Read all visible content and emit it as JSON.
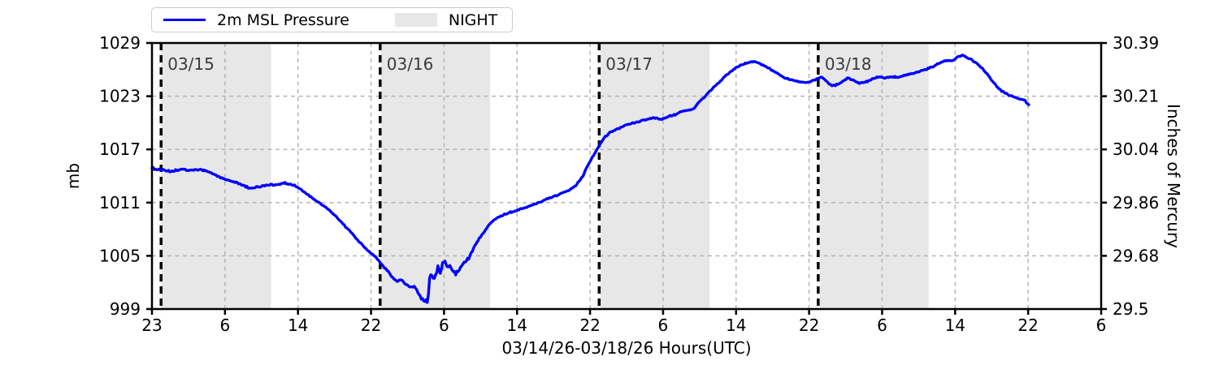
{
  "legend": {
    "series_label": "2m MSL Pressure",
    "night_label": "NIGHT"
  },
  "chart_data": {
    "type": "line",
    "title": "",
    "xlabel": "03/14/26-03/18/26  Hours(UTC)",
    "x_domain": [
      0,
      104
    ],
    "x_ticks": {
      "positions": [
        0,
        8,
        16,
        24,
        32,
        40,
        48,
        56,
        64,
        72,
        80,
        88,
        96,
        104
      ],
      "labels": [
        "23",
        "6",
        "14",
        "22",
        "6",
        "14",
        "22",
        "6",
        "14",
        "22",
        "6",
        "14",
        "22",
        "6"
      ]
    },
    "left_axis": {
      "label": "mb",
      "range": [
        999,
        1029
      ],
      "ticks": [
        1029,
        1023,
        1017,
        1011,
        1005,
        999
      ]
    },
    "right_axis": {
      "label": "Inches of Mercury",
      "range": [
        29.5,
        30.39
      ],
      "ticks": [
        "30.39",
        "30.21",
        "30.04",
        "29.86",
        "29.68",
        "29.5"
      ]
    },
    "grid": {
      "h_lines": [
        1005,
        1011,
        1017,
        1023
      ],
      "v_lines": [
        8,
        16,
        24,
        32,
        40,
        48,
        56,
        64,
        72,
        80,
        88,
        96
      ]
    },
    "day_lines": [
      {
        "pos": 1,
        "label": "03/15"
      },
      {
        "pos": 25,
        "label": "03/16"
      },
      {
        "pos": 49,
        "label": "03/17"
      },
      {
        "pos": 73,
        "label": "03/18"
      }
    ],
    "night_bands": [
      [
        1,
        13.05
      ],
      [
        25.1,
        37.05
      ],
      [
        49.15,
        61.1
      ],
      [
        73.2,
        85.1
      ]
    ],
    "colors": {
      "line": "#0000ff",
      "night": "#e7e7e7",
      "grid": "#b0b0b0",
      "day_line": "#000000",
      "day_label": "#3a3a3a",
      "axis": "#000000"
    },
    "series": [
      {
        "name": "2m MSL Pressure",
        "color": "#0000ff",
        "points": [
          [
            0,
            1014.9
          ],
          [
            0.5,
            1014.75
          ],
          [
            1,
            1014.7
          ],
          [
            1.7,
            1014.55
          ],
          [
            2.2,
            1014.5
          ],
          [
            2.9,
            1014.7
          ],
          [
            3.4,
            1014.8
          ],
          [
            4,
            1014.6
          ],
          [
            4.6,
            1014.65
          ],
          [
            5.2,
            1014.75
          ],
          [
            5.8,
            1014.6
          ],
          [
            6.4,
            1014.35
          ],
          [
            7,
            1014.1
          ],
          [
            7.6,
            1013.8
          ],
          [
            8.2,
            1013.55
          ],
          [
            9,
            1013.35
          ],
          [
            9.7,
            1013.1
          ],
          [
            10.4,
            1012.75
          ],
          [
            11,
            1012.6
          ],
          [
            11.5,
            1012.75
          ],
          [
            12.2,
            1012.9
          ],
          [
            13,
            1013.0
          ],
          [
            13.8,
            1013.05
          ],
          [
            14.5,
            1013.2
          ],
          [
            15.1,
            1013.05
          ],
          [
            15.7,
            1012.85
          ],
          [
            16.3,
            1012.5
          ],
          [
            17,
            1011.95
          ],
          [
            17.7,
            1011.4
          ],
          [
            18.3,
            1011.0
          ],
          [
            19,
            1010.5
          ],
          [
            19.7,
            1009.9
          ],
          [
            20.4,
            1009.2
          ],
          [
            21.1,
            1008.4
          ],
          [
            21.8,
            1007.65
          ],
          [
            22.5,
            1006.85
          ],
          [
            23.2,
            1006.05
          ],
          [
            24,
            1005.3
          ],
          [
            24.6,
            1004.75
          ],
          [
            25.2,
            1004.0
          ],
          [
            25.8,
            1003.3
          ],
          [
            26.4,
            1002.5
          ],
          [
            26.9,
            1002.1
          ],
          [
            27.3,
            1002.3
          ],
          [
            27.8,
            1001.8
          ],
          [
            28.3,
            1001.45
          ],
          [
            28.8,
            1001.55
          ],
          [
            29.3,
            1000.6
          ],
          [
            29.8,
            1000.0
          ],
          [
            30.1,
            999.75
          ],
          [
            30.25,
            999.9
          ],
          [
            30.35,
            1002.3
          ],
          [
            30.6,
            1002.9
          ],
          [
            30.8,
            1002.4
          ],
          [
            31.1,
            1002.8
          ],
          [
            31.35,
            1003.8
          ],
          [
            31.6,
            1003.1
          ],
          [
            31.9,
            1004.3
          ],
          [
            32.1,
            1004.45
          ],
          [
            32.35,
            1003.6
          ],
          [
            32.6,
            1004.05
          ],
          [
            32.9,
            1003.4
          ],
          [
            33.2,
            1003.0
          ],
          [
            33.6,
            1003.25
          ],
          [
            34,
            1004.0
          ],
          [
            34.4,
            1004.3
          ],
          [
            34.8,
            1004.85
          ],
          [
            35.3,
            1006.0
          ],
          [
            35.8,
            1006.9
          ],
          [
            36.3,
            1007.6
          ],
          [
            36.9,
            1008.5
          ],
          [
            37.4,
            1009.0
          ],
          [
            38,
            1009.4
          ],
          [
            38.7,
            1009.7
          ],
          [
            39.4,
            1009.95
          ],
          [
            40.2,
            1010.2
          ],
          [
            41,
            1010.5
          ],
          [
            41.8,
            1010.8
          ],
          [
            42.6,
            1011.1
          ],
          [
            43.4,
            1011.45
          ],
          [
            44.2,
            1011.75
          ],
          [
            45,
            1012.1
          ],
          [
            45.8,
            1012.5
          ],
          [
            46.5,
            1013.0
          ],
          [
            47.2,
            1014.0
          ],
          [
            47.8,
            1015.3
          ],
          [
            48.4,
            1016.4
          ],
          [
            49,
            1017.4
          ],
          [
            49.6,
            1018.4
          ],
          [
            50.3,
            1019.0
          ],
          [
            51.2,
            1019.4
          ],
          [
            52.1,
            1019.8
          ],
          [
            53,
            1020.05
          ],
          [
            54,
            1020.3
          ],
          [
            55,
            1020.55
          ],
          [
            55.8,
            1020.4
          ],
          [
            56.6,
            1020.7
          ],
          [
            57.4,
            1020.95
          ],
          [
            58.2,
            1021.3
          ],
          [
            58.9,
            1021.45
          ],
          [
            59.4,
            1021.6
          ],
          [
            59.9,
            1022.3
          ],
          [
            60.9,
            1023.3
          ],
          [
            61.7,
            1024.15
          ],
          [
            62.6,
            1025.05
          ],
          [
            63.5,
            1025.85
          ],
          [
            64.4,
            1026.45
          ],
          [
            65.1,
            1026.75
          ],
          [
            65.7,
            1026.9
          ],
          [
            66.3,
            1026.8
          ],
          [
            67,
            1026.5
          ],
          [
            67.8,
            1026.0
          ],
          [
            68.6,
            1025.5
          ],
          [
            69.4,
            1025.05
          ],
          [
            70.2,
            1024.8
          ],
          [
            71,
            1024.65
          ],
          [
            71.7,
            1024.55
          ],
          [
            72.4,
            1024.75
          ],
          [
            73,
            1025.0
          ],
          [
            73.3,
            1025.15
          ],
          [
            73.8,
            1024.8
          ],
          [
            74.4,
            1024.2
          ],
          [
            74.9,
            1024.25
          ],
          [
            75.6,
            1024.6
          ],
          [
            76.2,
            1025.05
          ],
          [
            76.8,
            1024.8
          ],
          [
            77.5,
            1024.45
          ],
          [
            78.2,
            1024.6
          ],
          [
            79,
            1024.95
          ],
          [
            79.7,
            1025.2
          ],
          [
            80.4,
            1025.05
          ],
          [
            81.1,
            1025.2
          ],
          [
            81.8,
            1025.1
          ],
          [
            82.5,
            1025.35
          ],
          [
            83.3,
            1025.5
          ],
          [
            84.1,
            1025.8
          ],
          [
            84.9,
            1026.05
          ],
          [
            85.7,
            1026.4
          ],
          [
            86.5,
            1026.85
          ],
          [
            87.1,
            1027.05
          ],
          [
            87.6,
            1026.95
          ],
          [
            88.2,
            1027.4
          ],
          [
            88.8,
            1027.6
          ],
          [
            89.4,
            1027.35
          ],
          [
            90.1,
            1026.9
          ],
          [
            90.8,
            1026.3
          ],
          [
            91.5,
            1025.55
          ],
          [
            92.1,
            1024.7
          ],
          [
            92.7,
            1023.95
          ],
          [
            93.2,
            1023.5
          ],
          [
            93.8,
            1023.15
          ],
          [
            94.5,
            1022.9
          ],
          [
            95.2,
            1022.7
          ],
          [
            95.7,
            1022.45
          ],
          [
            96.1,
            1021.95
          ]
        ]
      }
    ]
  }
}
